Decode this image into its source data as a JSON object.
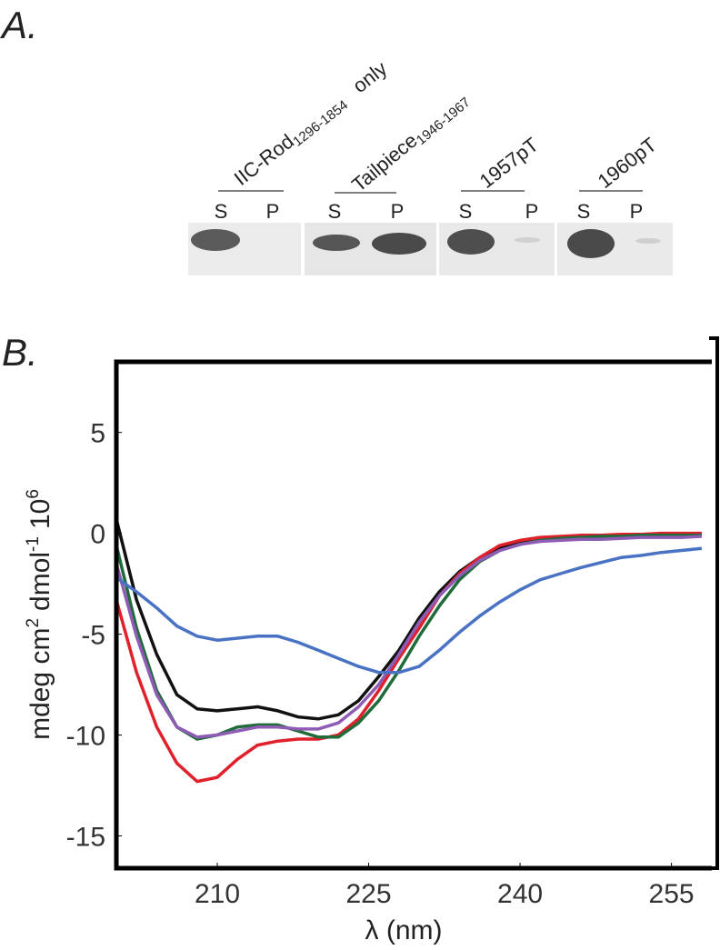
{
  "panel_a": {
    "label": "A.",
    "samples": [
      {
        "label": "IIC-Rod",
        "subscript": "1296-1854",
        "suffix": "only",
        "lanes": [
          "S",
          "P"
        ]
      },
      {
        "label": "Tailpiece",
        "subscript": "1946-1967",
        "lanes": [
          "S",
          "P"
        ]
      },
      {
        "label": "1957pT",
        "lanes": [
          "S",
          "P"
        ]
      },
      {
        "label": "1960pT",
        "lanes": [
          "S",
          "P"
        ]
      }
    ]
  },
  "chart_data": {
    "type": "line",
    "panel_label": "B.",
    "xlabel": "λ (nm)",
    "ylabel": [
      "mdeg cm",
      "2",
      "dmol",
      "-1",
      "10",
      "6"
    ],
    "x": [
      200,
      202,
      204,
      206,
      208,
      210,
      212,
      214,
      216,
      218,
      220,
      222,
      224,
      226,
      228,
      230,
      232,
      234,
      236,
      238,
      240,
      242,
      244,
      246,
      248,
      250,
      252,
      254,
      256,
      258
    ],
    "xlim": [
      200,
      259
    ],
    "xticks": [
      210,
      225,
      240,
      255
    ],
    "ylim": [
      -16.6,
      8.5
    ],
    "yticks": [
      5,
      0,
      -5,
      -10,
      -15
    ],
    "series": [
      {
        "color": "#111111",
        "values": [
          0.7,
          -3.3,
          -6.0,
          -8.0,
          -8.7,
          -8.8,
          -8.7,
          -8.6,
          -8.8,
          -9.1,
          -9.2,
          -9.0,
          -8.3,
          -7.1,
          -5.8,
          -4.2,
          -2.9,
          -1.9,
          -1.2,
          -0.7,
          -0.45,
          -0.3,
          -0.2,
          -0.15,
          -0.1,
          -0.1,
          -0.1,
          -0.1,
          -0.1,
          -0.1
        ]
      },
      {
        "color": "#e0202a",
        "values": [
          -3.3,
          -6.9,
          -9.6,
          -11.4,
          -12.3,
          -12.1,
          -11.2,
          -10.5,
          -10.3,
          -10.2,
          -10.2,
          -10.0,
          -9.2,
          -7.8,
          -6.2,
          -4.7,
          -3.1,
          -2.0,
          -1.2,
          -0.6,
          -0.35,
          -0.2,
          -0.15,
          -0.1,
          -0.1,
          -0.05,
          -0.05,
          0,
          0,
          0
        ]
      },
      {
        "color": "#1f6b3a",
        "values": [
          -0.6,
          -4.7,
          -7.8,
          -9.6,
          -10.2,
          -10.0,
          -9.6,
          -9.5,
          -9.5,
          -9.8,
          -10.1,
          -10.1,
          -9.4,
          -8.3,
          -6.8,
          -5.1,
          -3.6,
          -2.3,
          -1.4,
          -0.85,
          -0.55,
          -0.35,
          -0.25,
          -0.2,
          -0.15,
          -0.15,
          -0.1,
          -0.1,
          -0.1,
          -0.1
        ]
      },
      {
        "color": "#8e5bb5",
        "values": [
          -1.5,
          -5.1,
          -8.0,
          -9.6,
          -10.1,
          -10.0,
          -9.8,
          -9.6,
          -9.6,
          -9.7,
          -9.7,
          -9.4,
          -8.6,
          -7.5,
          -6.0,
          -4.4,
          -3.1,
          -2.1,
          -1.35,
          -0.85,
          -0.55,
          -0.4,
          -0.35,
          -0.3,
          -0.3,
          -0.25,
          -0.2,
          -0.2,
          -0.2,
          -0.15
        ]
      },
      {
        "color": "#4a72c4",
        "values": [
          -2.2,
          -2.9,
          -3.7,
          -4.6,
          -5.1,
          -5.3,
          -5.2,
          -5.1,
          -5.1,
          -5.4,
          -5.8,
          -6.2,
          -6.6,
          -6.9,
          -6.9,
          -6.6,
          -5.8,
          -4.9,
          -4.1,
          -3.4,
          -2.8,
          -2.3,
          -2.0,
          -1.7,
          -1.45,
          -1.2,
          -1.1,
          -0.95,
          -0.85,
          -0.75
        ]
      }
    ]
  }
}
